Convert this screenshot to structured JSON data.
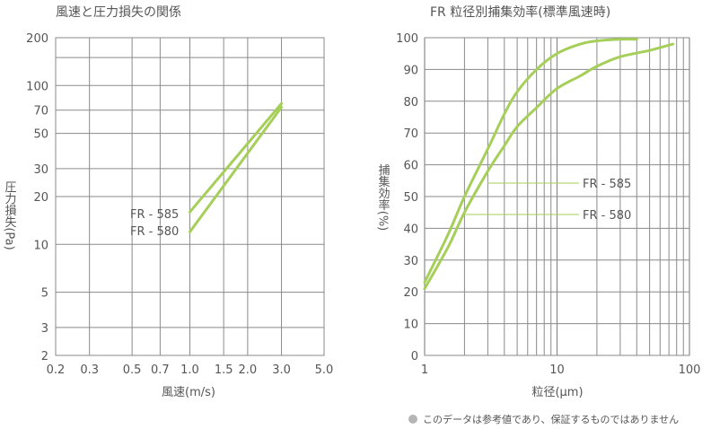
{
  "footnote": "このデータは参考値であり、保証するものではありません",
  "chart_data": [
    {
      "type": "line",
      "title": "風速と圧力損失の関係",
      "xlabel": "風速(m/s)",
      "ylabel": "圧力損失(Pa)",
      "x_scale": "log",
      "y_scale": "log",
      "xlim": [
        0.2,
        5.0
      ],
      "ylim": [
        2,
        200
      ],
      "x_ticks": [
        "0.2",
        "0.3",
        "0.5",
        "0.7",
        "1.0",
        "1.5",
        "2.0",
        "3.0",
        "5.0"
      ],
      "y_ticks": [
        "2",
        "3",
        "5",
        "10",
        "20",
        "30",
        "50",
        "70",
        "100",
        "200"
      ],
      "grid": true,
      "series": [
        {
          "name": "FR - 585",
          "x": [
            1.0,
            3.0
          ],
          "y": [
            16,
            77
          ]
        },
        {
          "name": "FR - 580",
          "x": [
            1.0,
            3.0
          ],
          "y": [
            12,
            73
          ]
        }
      ],
      "line_color": "#a6cf5a"
    },
    {
      "type": "line",
      "title": "FR 粒径別捕集効率(標準風速時)",
      "xlabel": "粒径(μm)",
      "ylabel": "捕集効率(%)",
      "x_scale": "log",
      "y_scale": "linear",
      "xlim": [
        1,
        100
      ],
      "ylim": [
        0,
        100
      ],
      "x_ticks": [
        "1",
        "10",
        "100"
      ],
      "y_ticks": [
        "0",
        "10",
        "20",
        "30",
        "40",
        "50",
        "60",
        "70",
        "80",
        "90",
        "100"
      ],
      "grid": true,
      "series": [
        {
          "name": "FR - 585",
          "x": [
            1,
            1.5,
            2,
            3,
            4,
            5,
            7,
            10,
            15,
            20,
            30,
            40
          ],
          "y": [
            23,
            38,
            50,
            65,
            76,
            83,
            90,
            95,
            98,
            99,
            99.5,
            99.5
          ]
        },
        {
          "name": "FR - 580",
          "x": [
            1,
            1.5,
            2,
            3,
            4,
            5,
            7,
            10,
            15,
            20,
            30,
            50,
            75
          ],
          "y": [
            21,
            34,
            45,
            58,
            66,
            72,
            78,
            84,
            88,
            91,
            94,
            96,
            98
          ]
        }
      ],
      "line_color": "#a6cf5a"
    }
  ]
}
